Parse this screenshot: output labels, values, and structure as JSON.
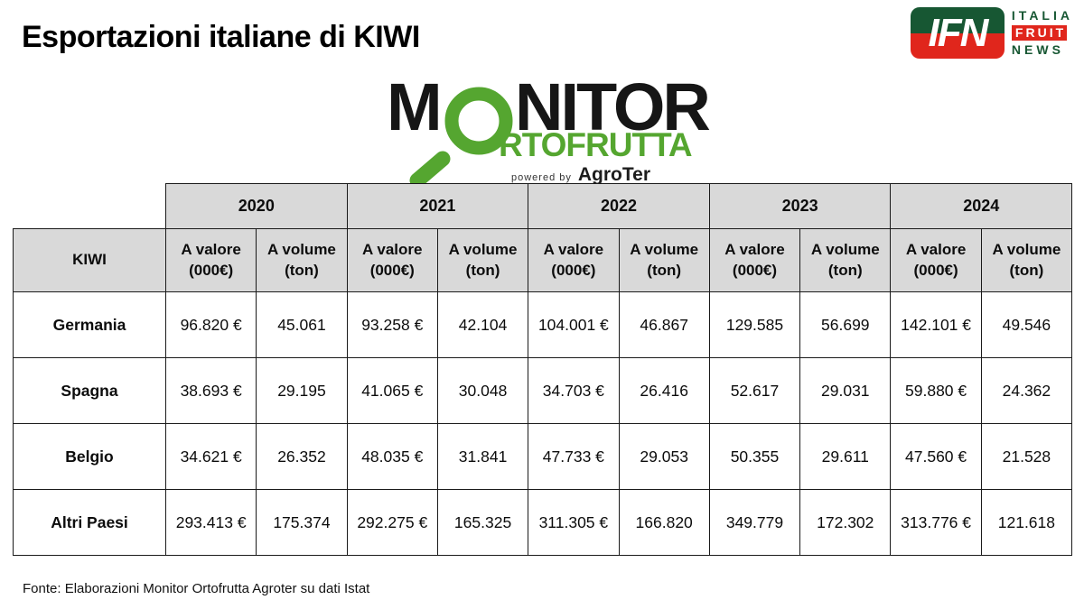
{
  "page": {
    "title": "Esportazioni italiane di KIWI",
    "fonte": "Fonte: Elaborazioni Monitor Ortofrutta Agroter su dati Istat"
  },
  "ifn_logo": {
    "acronym": "IFN",
    "line_italia": "ITALIA",
    "line_fruit": "FRUIT",
    "line_news": "NEWS",
    "green": "#175733",
    "red": "#e0261c"
  },
  "monitor_logo": {
    "word_m": "M",
    "word_nitor": "NITOR",
    "word_ortofrutta": "RTOFRUTTA",
    "powered_by": "powered by",
    "brand": "AgroTer",
    "green": "#55a630",
    "black": "#161616"
  },
  "table": {
    "corner_label": "KIWI",
    "years": [
      "2020",
      "2021",
      "2022",
      "2023",
      "2024"
    ],
    "subheader_value": [
      "A valore",
      "(000€)"
    ],
    "subheader_volume": [
      "A volume",
      "(ton)"
    ],
    "header_bg": "#d9d9d9",
    "border_color": "#1a1a1a",
    "rows": [
      {
        "label": "Germania",
        "cells": [
          "96.820 €",
          "45.061",
          "93.258 €",
          "42.104",
          "104.001 €",
          "46.867",
          "129.585",
          "56.699",
          "142.101 €",
          "49.546"
        ]
      },
      {
        "label": "Spagna",
        "cells": [
          "38.693 €",
          "29.195",
          "41.065 €",
          "30.048",
          "34.703 €",
          "26.416",
          "52.617",
          "29.031",
          "59.880 €",
          "24.362"
        ]
      },
      {
        "label": "Belgio",
        "cells": [
          "34.621 €",
          "26.352",
          "48.035 €",
          "31.841",
          "47.733 €",
          "29.053",
          "50.355",
          "29.611",
          "47.560 €",
          "21.528"
        ]
      },
      {
        "label": "Altri Paesi",
        "cells": [
          "293.413 €",
          "175.374",
          "292.275 €",
          "165.325",
          "311.305 €",
          "166.820",
          "349.779",
          "172.302",
          "313.776 €",
          "121.618"
        ]
      }
    ]
  },
  "chart_data": {
    "type": "table",
    "title": "Esportazioni italiane di KIWI",
    "source": "Fonte: Elaborazioni Monitor Ortofrutta Agroter su dati Istat",
    "value_unit": "000€",
    "volume_unit": "ton",
    "years": [
      2020,
      2021,
      2022,
      2023,
      2024
    ],
    "rows": [
      {
        "name": "Germania",
        "valore_000eur": [
          96820,
          93258,
          104001,
          129585,
          142101
        ],
        "volume_ton": [
          45061,
          42104,
          46867,
          56699,
          49546
        ]
      },
      {
        "name": "Spagna",
        "valore_000eur": [
          38693,
          41065,
          34703,
          52617,
          59880
        ],
        "volume_ton": [
          29195,
          30048,
          26416,
          29031,
          24362
        ]
      },
      {
        "name": "Belgio",
        "valore_000eur": [
          34621,
          48035,
          47733,
          50355,
          47560
        ],
        "volume_ton": [
          26352,
          31841,
          29053,
          29611,
          21528
        ]
      },
      {
        "name": "Altri Paesi",
        "valore_000eur": [
          293413,
          292275,
          311305,
          349779,
          313776
        ],
        "volume_ton": [
          175374,
          165325,
          166820,
          172302,
          121618
        ]
      }
    ]
  }
}
